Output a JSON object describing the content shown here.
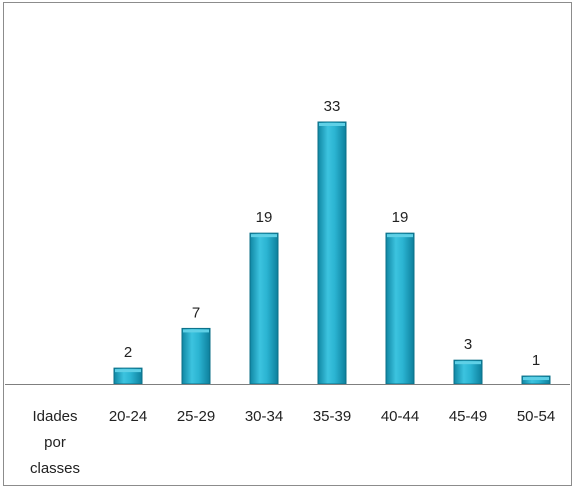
{
  "chart_data": {
    "type": "bar",
    "category_axis_title": [
      "Idades",
      "por",
      "classes"
    ],
    "categories": [
      "20-24",
      "25-29",
      "30-34",
      "35-39",
      "40-44",
      "45-49",
      "50-54"
    ],
    "values": [
      2,
      7,
      19,
      33,
      19,
      3,
      1
    ],
    "ylim": [
      0,
      33
    ],
    "grid": false,
    "legend": "none",
    "colors": {
      "bar_top": "#5fd0e6",
      "bar_mid": "#1aa6c4",
      "bar_edge": "#0b6f87",
      "axis": "#7f7f7f"
    }
  }
}
